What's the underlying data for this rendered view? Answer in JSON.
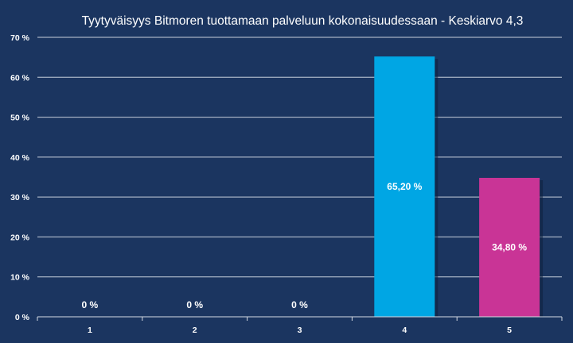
{
  "chart_data": {
    "type": "bar",
    "title": "Tyytyväisyys Bitmoren tuottamaan palveluun kokonaisuudessaan - Keskiarvo 4,3",
    "xlabel": "",
    "ylabel": "",
    "categories": [
      "1",
      "2",
      "3",
      "4",
      "5"
    ],
    "values": [
      0,
      0,
      0,
      65.2,
      34.8
    ],
    "data_labels": [
      "0 %",
      "0 %",
      "0 %",
      "65,20 %",
      "34,80 %"
    ],
    "bar_colors": [
      "#00a6e4",
      "#00a6e4",
      "#00a6e4",
      "#00a6e4",
      "#c93496"
    ],
    "ylim": [
      0,
      70
    ],
    "yticks": [
      0,
      10,
      20,
      30,
      40,
      50,
      60,
      70
    ],
    "ytick_labels": [
      "0 %",
      "10 %",
      "20 %",
      "30 %",
      "40 %",
      "50 %",
      "60 %",
      "70 %"
    ],
    "grid": true,
    "legend": "none"
  },
  "colors": {
    "background": "#1b3560",
    "gridline": "#c8d0dc",
    "text": "#ffffff"
  }
}
